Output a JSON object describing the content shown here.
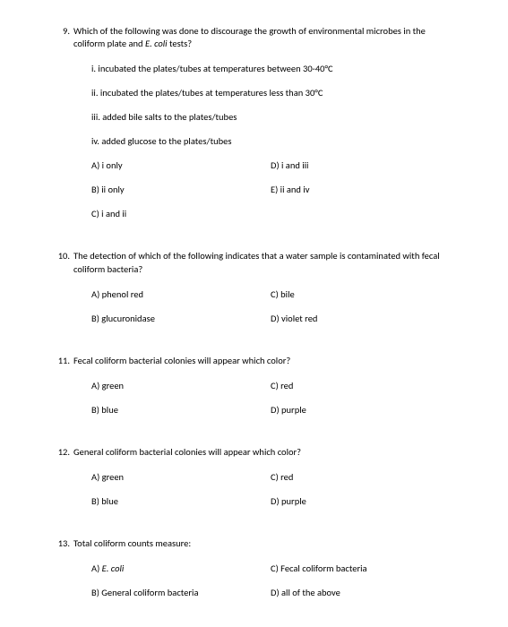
{
  "q9": {
    "num": "9.",
    "text_a": "Which of the following was done to discourage the growth of environmental microbes in the coliform plate and ",
    "text_b": "E. coli",
    "text_c": " tests?",
    "sub": {
      "i": "i.  incubated the plates/tubes at temperatures between 30-40°C",
      "ii": "ii.  incubated the plates/tubes at temperatures less than 30°C",
      "iii": "iii.  added bile salts to the plates/tubes",
      "iv": "iv. added glucose to the plates/tubes"
    },
    "opts": {
      "a": "A)  i only",
      "d": "D)  i and iii",
      "b": "B)  ii only",
      "e": "E)  ii and iv",
      "c": "C)  i and ii"
    }
  },
  "q10": {
    "num": "10.",
    "text": "The detection of which of the following indicates that a water sample is contaminated with fecal coliform bacteria?",
    "opts": {
      "a": "A)  phenol red",
      "c": "C)  bile",
      "b": "B)  glucuronidase",
      "d": "D)  violet red"
    }
  },
  "q11": {
    "num": "11.",
    "text": "Fecal coliform bacterial colonies will appear which color?",
    "opts": {
      "a": "A)  green",
      "c": "C)  red",
      "b": "B)  blue",
      "d": "D)  purple"
    }
  },
  "q12": {
    "num": "12.",
    "text": " General coliform bacterial colonies will appear which color?",
    "opts": {
      "a": "A)  green",
      "c": "C)  red",
      "b": "B)  blue",
      "d": "D)  purple"
    }
  },
  "q13": {
    "num": "13.",
    "text": "Total coliform counts measure:",
    "opts": {
      "a_pre": "A)  ",
      "a_it": "E. coli",
      "c": "C)  Fecal coliform bacteria",
      "b": "B)  General coliform bacteria",
      "d": "D)  all of the above"
    }
  }
}
